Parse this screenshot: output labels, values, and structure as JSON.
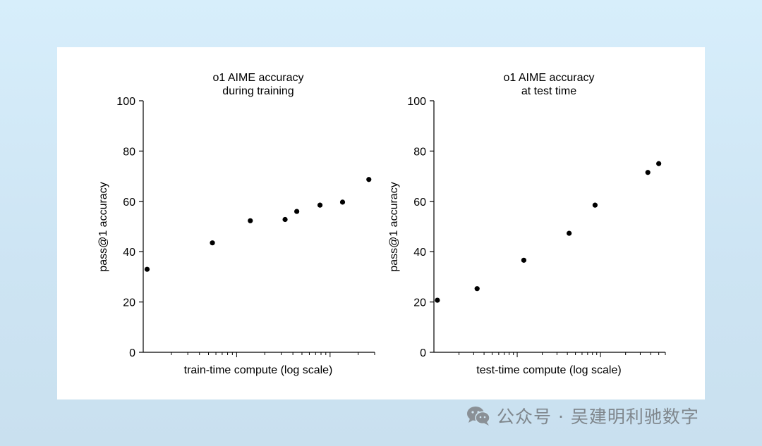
{
  "chart_data": [
    {
      "type": "scatter",
      "title": [
        "o1 AIME accuracy",
        "during training"
      ],
      "xlabel": "train-time compute (log scale)",
      "ylabel": "pass@1 accuracy",
      "x_scale": "log",
      "x_tick_labels": "none",
      "y_ticks": [
        0,
        20,
        40,
        60,
        80,
        100
      ],
      "ylim": [
        0,
        100
      ],
      "grid": false,
      "series": [
        {
          "points": [
            {
              "x": 1.1,
              "y": 33
            },
            {
              "x": 5.5,
              "y": 43.5
            },
            {
              "x": 14,
              "y": 52.3
            },
            {
              "x": 33,
              "y": 52.8
            },
            {
              "x": 44,
              "y": 56
            },
            {
              "x": 78,
              "y": 58.5
            },
            {
              "x": 136,
              "y": 59.7
            },
            {
              "x": 260,
              "y": 68.7
            }
          ]
        }
      ]
    },
    {
      "type": "scatter",
      "title": [
        "o1 AIME accuracy",
        "at test time"
      ],
      "xlabel": "test-time compute (log scale)",
      "ylabel": "pass@1 accuracy",
      "x_scale": "log",
      "x_tick_labels": "none",
      "y_ticks": [
        0,
        20,
        40,
        60,
        80,
        100
      ],
      "ylim": [
        0,
        100
      ],
      "grid": false,
      "series": [
        {
          "points": [
            {
              "x": 1.1,
              "y": 20.7
            },
            {
              "x": 3.3,
              "y": 25.3
            },
            {
              "x": 12,
              "y": 36.6
            },
            {
              "x": 42,
              "y": 47.3
            },
            {
              "x": 86,
              "y": 58.5
            },
            {
              "x": 370,
              "y": 71.5
            },
            {
              "x": 500,
              "y": 75
            }
          ]
        }
      ]
    }
  ],
  "watermark": {
    "text": "公众号 · 吴建明利驰数字",
    "icon": "wechat-icon",
    "color": "#7f868c"
  },
  "colors": {
    "background": "#d3e9f6",
    "card": "#ffffff",
    "ink": "#000000"
  }
}
